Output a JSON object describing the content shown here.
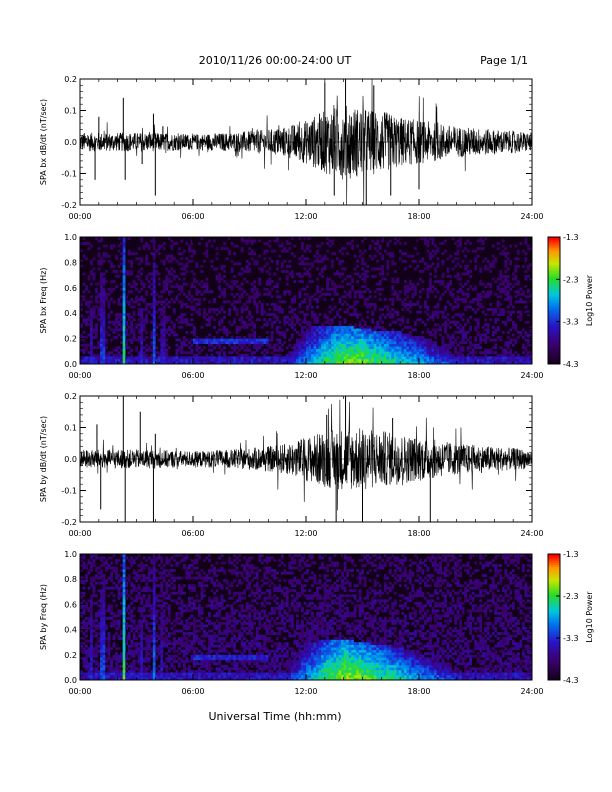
{
  "header": {
    "title": "2010/11/26  00:00-24:00 UT",
    "page": "Page 1/1"
  },
  "x_axis_title": "Universal Time (hh:mm)",
  "colors": {
    "frame": "#000000",
    "trace": "#000000",
    "spectro_bg": "#120018"
  },
  "chart_data": [
    {
      "type": "line",
      "ylabel": "SPA bx dB/dt (nT/sec)",
      "x_range_hours": [
        0,
        24
      ],
      "ylim": [
        -0.2,
        0.2
      ],
      "yticks": [
        "-0.2",
        "-0.1",
        "0.0",
        "0.1",
        "0.2"
      ],
      "xticks": [
        "00:00",
        "06:00",
        "12:00",
        "18:00",
        "24:00"
      ],
      "noise_envelope": {
        "hours": [
          0,
          2,
          4,
          6,
          8,
          10,
          11,
          12,
          13,
          14,
          15,
          16,
          17,
          18,
          19,
          20,
          21,
          22,
          23,
          24
        ],
        "amplitude": [
          0.03,
          0.03,
          0.03,
          0.025,
          0.03,
          0.04,
          0.05,
          0.07,
          0.1,
          0.12,
          0.11,
          0.1,
          0.08,
          0.07,
          0.06,
          0.05,
          0.045,
          0.04,
          0.035,
          0.03
        ]
      },
      "spikes": [
        {
          "hour": 0.8,
          "value": -0.12
        },
        {
          "hour": 1.0,
          "value": 0.08
        },
        {
          "hour": 2.3,
          "value": 0.14
        },
        {
          "hour": 2.4,
          "value": -0.12
        },
        {
          "hour": 3.3,
          "value": -0.07
        },
        {
          "hour": 3.9,
          "value": 0.09
        },
        {
          "hour": 4.0,
          "value": -0.17
        },
        {
          "hour": 4.4,
          "value": 0.05
        },
        {
          "hour": 13.0,
          "value": 0.19
        },
        {
          "hour": 13.5,
          "value": -0.17
        },
        {
          "hour": 14.1,
          "value": 0.2
        },
        {
          "hour": 15.2,
          "value": -0.2
        },
        {
          "hour": 15.6,
          "value": 0.18
        },
        {
          "hour": 16.5,
          "value": -0.17
        },
        {
          "hour": 18.0,
          "value": -0.15
        }
      ]
    },
    {
      "type": "heatmap",
      "ylabel": "SPA bx Freq (Hz)",
      "x_range_hours": [
        0,
        24
      ],
      "ylim": [
        0,
        1.0
      ],
      "yticks": [
        "0.0",
        "0.2",
        "0.4",
        "0.6",
        "0.8",
        "1.0"
      ],
      "xticks": [
        "00:00",
        "06:00",
        "12:00",
        "18:00",
        "24:00"
      ],
      "colorbar": {
        "label": "Log10 Power",
        "range": [
          -4.3,
          -1.3
        ],
        "ticks": [
          "-1.3",
          "-2.3",
          "-3.3",
          "-4.3"
        ]
      },
      "background_log_power": -4.1,
      "broadband_columns": [
        {
          "hour": 0.6,
          "log_power": -3.4
        },
        {
          "hour": 1.2,
          "log_power": -3.2
        },
        {
          "hour": 2.3,
          "log_power": -2.4
        },
        {
          "hour": 3.3,
          "log_power": -3.4
        },
        {
          "hour": 3.9,
          "log_power": -3.0
        },
        {
          "hour": 4.4,
          "log_power": -3.5
        }
      ],
      "active_region": {
        "hours": [
          11,
          12,
          13,
          14,
          15,
          16,
          17,
          18,
          19,
          20,
          21
        ],
        "max_freq_hz": [
          0.15,
          0.3,
          0.3,
          0.3,
          0.28,
          0.26,
          0.25,
          0.22,
          0.18,
          0.13,
          0.08
        ],
        "peak_log_power": [
          -3.4,
          -2.9,
          -2.4,
          -2.1,
          -2.1,
          -2.3,
          -2.5,
          -2.7,
          -3.0,
          -3.3,
          -3.6
        ]
      },
      "band": {
        "hours": [
          6,
          10
        ],
        "freq_hz": 0.18,
        "log_power": -3.3
      }
    },
    {
      "type": "line",
      "ylabel": "SPA by dB/dt (nT/sec)",
      "x_range_hours": [
        0,
        24
      ],
      "ylim": [
        -0.2,
        0.2
      ],
      "yticks": [
        "-0.2",
        "-0.1",
        "0.0",
        "0.1",
        "0.2"
      ],
      "xticks": [
        "00:00",
        "06:00",
        "12:00",
        "18:00",
        "24:00"
      ],
      "noise_envelope": {
        "hours": [
          0,
          2,
          4,
          6,
          8,
          10,
          11,
          12,
          13,
          14,
          15,
          16,
          17,
          18,
          19,
          20,
          21,
          22,
          23,
          24
        ],
        "amplitude": [
          0.03,
          0.03,
          0.03,
          0.025,
          0.03,
          0.04,
          0.05,
          0.07,
          0.09,
          0.1,
          0.1,
          0.09,
          0.08,
          0.07,
          0.06,
          0.05,
          0.045,
          0.04,
          0.035,
          0.03
        ]
      },
      "spikes": [
        {
          "hour": 0.9,
          "value": 0.11
        },
        {
          "hour": 1.1,
          "value": -0.16
        },
        {
          "hour": 2.3,
          "value": 0.2
        },
        {
          "hour": 2.4,
          "value": -0.2
        },
        {
          "hour": 3.2,
          "value": 0.15
        },
        {
          "hour": 3.9,
          "value": -0.2
        },
        {
          "hour": 4.0,
          "value": 0.08
        },
        {
          "hour": 13.1,
          "value": 0.14
        },
        {
          "hour": 13.6,
          "value": -0.2
        },
        {
          "hour": 14.1,
          "value": 0.2
        },
        {
          "hour": 15.0,
          "value": -0.2
        },
        {
          "hour": 16.6,
          "value": 0.13
        },
        {
          "hour": 18.6,
          "value": -0.2
        }
      ]
    },
    {
      "type": "heatmap",
      "ylabel": "SPA by Freq (Hz)",
      "x_range_hours": [
        0,
        24
      ],
      "ylim": [
        0,
        1.0
      ],
      "yticks": [
        "0.0",
        "0.2",
        "0.4",
        "0.6",
        "0.8",
        "1.0"
      ],
      "xticks": [
        "00:00",
        "06:00",
        "12:00",
        "18:00",
        "24:00"
      ],
      "colorbar": {
        "label": "Log10 Power",
        "range": [
          -4.3,
          -1.3
        ],
        "ticks": [
          "-1.3",
          "-2.3",
          "-3.3",
          "-4.3"
        ]
      },
      "background_log_power": -4.0,
      "broadband_columns": [
        {
          "hour": 0.6,
          "log_power": -3.3
        },
        {
          "hour": 1.2,
          "log_power": -3.1
        },
        {
          "hour": 2.3,
          "log_power": -2.2
        },
        {
          "hour": 3.3,
          "log_power": -3.3
        },
        {
          "hour": 3.9,
          "log_power": -2.9
        },
        {
          "hour": 4.3,
          "log_power": -3.4
        }
      ],
      "active_region": {
        "hours": [
          11,
          12,
          13,
          14,
          15,
          16,
          17,
          18,
          19,
          20,
          21
        ],
        "max_freq_hz": [
          0.15,
          0.3,
          0.32,
          0.32,
          0.3,
          0.28,
          0.26,
          0.22,
          0.18,
          0.12,
          0.08
        ],
        "peak_log_power": [
          -3.3,
          -2.8,
          -2.3,
          -2.0,
          -2.1,
          -2.3,
          -2.5,
          -2.8,
          -3.0,
          -3.3,
          -3.6
        ]
      },
      "band": {
        "hours": [
          6,
          10
        ],
        "freq_hz": 0.18,
        "log_power": -3.4
      }
    }
  ]
}
